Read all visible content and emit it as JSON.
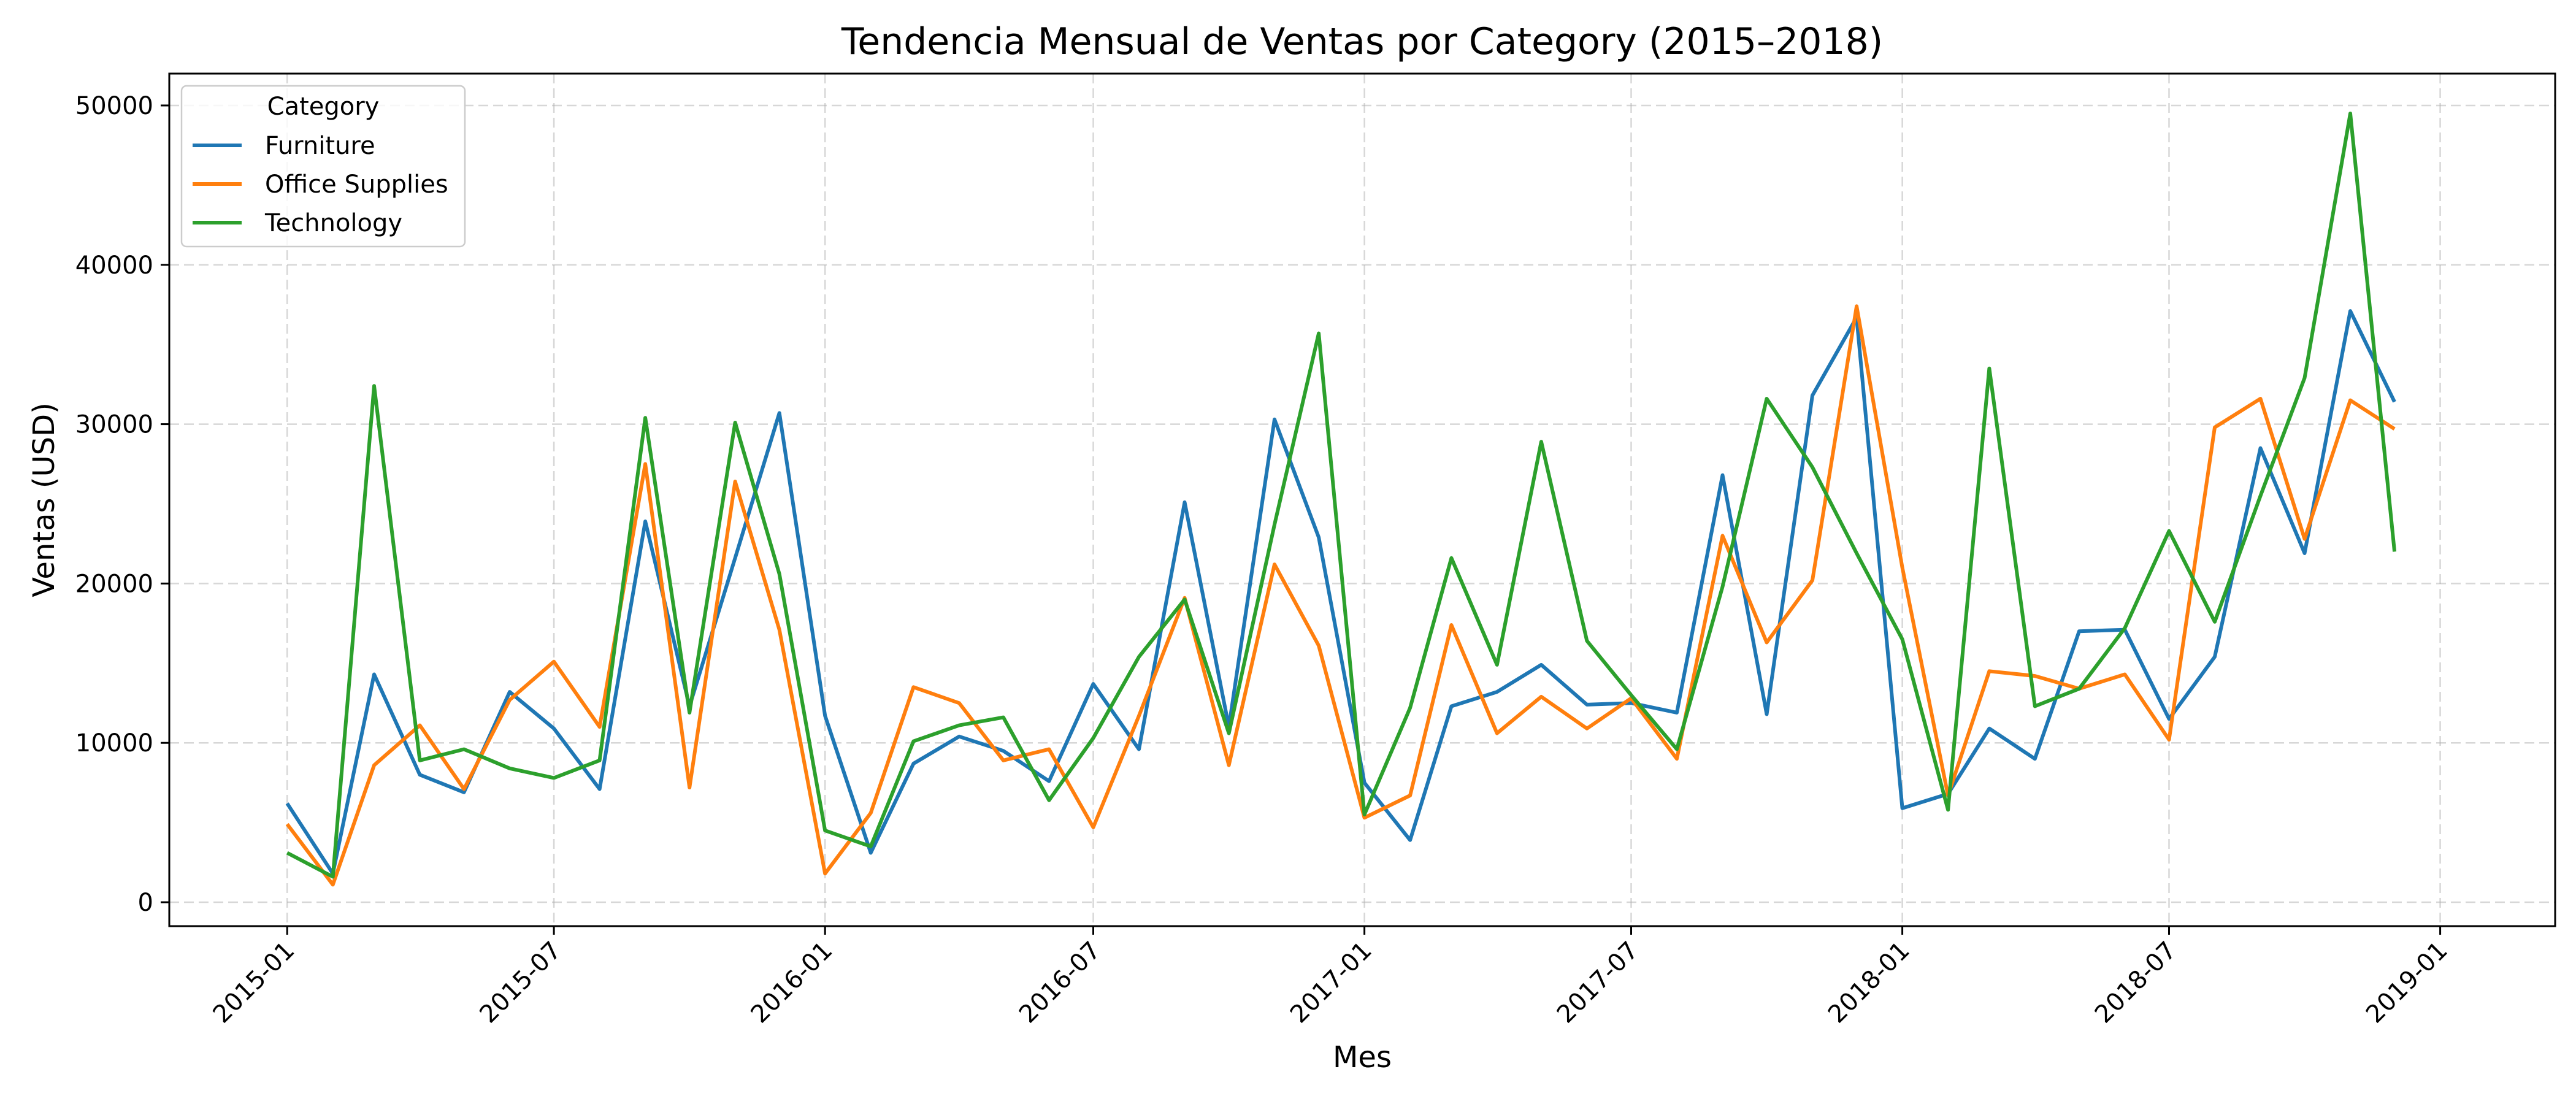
{
  "chart_data": {
    "type": "line",
    "title": "Tendencia Mensual de Ventas por Category (2015–2018)",
    "xlabel": "Mes",
    "ylabel": "Ventas (USD)",
    "xlim": [
      "2014-10-13",
      "2019-03-20"
    ],
    "ylim": [
      -1500,
      52000
    ],
    "x_ticks": [
      "2015-01",
      "2015-07",
      "2016-01",
      "2016-07",
      "2017-01",
      "2017-07",
      "2018-01",
      "2018-07",
      "2019-01"
    ],
    "y_ticks": [
      0,
      10000,
      20000,
      30000,
      40000,
      50000
    ],
    "grid": true,
    "legend": {
      "title": "Category",
      "placement": "top-left"
    },
    "x": [
      "2015-01",
      "2015-02",
      "2015-03",
      "2015-04",
      "2015-05",
      "2015-06",
      "2015-07",
      "2015-08",
      "2015-09",
      "2015-10",
      "2015-11",
      "2015-12",
      "2016-01",
      "2016-02",
      "2016-03",
      "2016-04",
      "2016-05",
      "2016-06",
      "2016-07",
      "2016-08",
      "2016-09",
      "2016-10",
      "2016-11",
      "2016-12",
      "2017-01",
      "2017-02",
      "2017-03",
      "2017-04",
      "2017-05",
      "2017-06",
      "2017-07",
      "2017-08",
      "2017-09",
      "2017-10",
      "2017-11",
      "2017-12",
      "2018-01",
      "2018-02",
      "2018-03",
      "2018-04",
      "2018-05",
      "2018-06",
      "2018-07",
      "2018-08",
      "2018-09",
      "2018-10",
      "2018-11",
      "2018-12"
    ],
    "series": [
      {
        "name": "Furniture",
        "color": "#1f77b4",
        "values": [
          6200,
          1800,
          14300,
          8000,
          6900,
          13200,
          10900,
          7100,
          23900,
          12300,
          21600,
          30700,
          11700,
          3100,
          8700,
          10400,
          9500,
          7600,
          13700,
          9600,
          25100,
          11000,
          30300,
          22900,
          7500,
          3900,
          12300,
          13200,
          14900,
          12400,
          12500,
          11900,
          26800,
          11800,
          31800,
          36700,
          5900,
          6800,
          10900,
          9000,
          17000,
          17100,
          11500,
          15400,
          28500,
          21900,
          37100,
          31400
        ]
      },
      {
        "name": "Office Supplies",
        "color": "#ff7f0e",
        "values": [
          4900,
          1100,
          8600,
          11100,
          7100,
          12700,
          15100,
          11000,
          27500,
          7200,
          26400,
          17100,
          1800,
          5600,
          13500,
          12500,
          8900,
          9600,
          4700,
          11700,
          19100,
          8600,
          21200,
          16100,
          5300,
          6700,
          17400,
          10600,
          12900,
          10900,
          12800,
          9000,
          23000,
          16300,
          20200,
          37400,
          21000,
          6700,
          14500,
          14200,
          13400,
          14300,
          10200,
          29800,
          31600,
          22800,
          31500,
          29700
        ]
      },
      {
        "name": "Technology",
        "color": "#2ca02c",
        "values": [
          3100,
          1600,
          32400,
          8900,
          9600,
          8400,
          7800,
          8900,
          30400,
          11900,
          30100,
          20600,
          4500,
          3500,
          10100,
          11100,
          11600,
          6400,
          10300,
          15400,
          19000,
          10600,
          23700,
          35700,
          5500,
          12200,
          21600,
          14900,
          28900,
          16400,
          13000,
          9600,
          19800,
          31600,
          27300,
          21900,
          16500,
          5800,
          33500,
          12300,
          13400,
          17200,
          23300,
          17600,
          25500,
          32900,
          49500,
          22000
        ]
      }
    ]
  }
}
